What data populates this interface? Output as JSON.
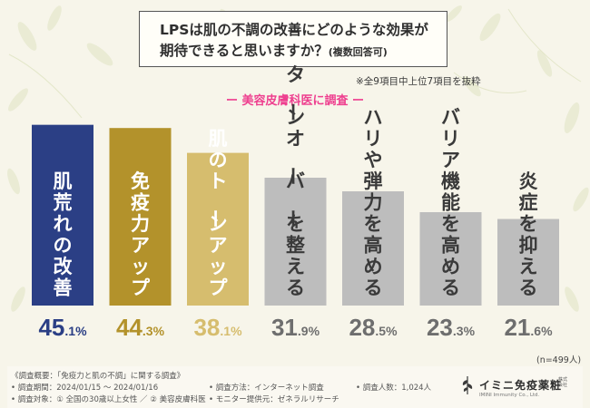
{
  "question": {
    "line1": "LPSは肌の不調の改善にどのような効果が",
    "line2": "期待できると思いますか？",
    "note": "(複数回答可)"
  },
  "extract_note": "※全9項目中上位7項目を抜粋",
  "subtitle": "ー 美容皮膚科医に調査 ー",
  "sample_note": "(n=499人)",
  "chart_data": {
    "type": "bar",
    "categories": [
      "肌荒れの改善",
      "免疫力アップ",
      "肌のトーンアップ",
      "ターンオーバーを整える",
      "ハリや弾力を高める",
      "バリア機能を高める",
      "炎症を抑える"
    ],
    "values": [
      45.1,
      44.3,
      38.1,
      31.9,
      28.5,
      23.3,
      21.6
    ],
    "value_labels": [
      {
        "int": "45",
        "dec": ".1%"
      },
      {
        "int": "44",
        "dec": ".3%"
      },
      {
        "int": "38",
        "dec": ".1%"
      },
      {
        "int": "31",
        "dec": ".9%"
      },
      {
        "int": "28",
        "dec": ".5%"
      },
      {
        "int": "23",
        "dec": ".3%"
      },
      {
        "int": "21",
        "dec": ".6%"
      }
    ],
    "unit": "%",
    "ylim": [
      0,
      50
    ],
    "bar_colors": [
      "#2b3f85",
      "#b3922b",
      "#d6bd6e",
      "#bdbdbd",
      "#bdbdbd",
      "#bdbdbd",
      "#bdbdbd"
    ],
    "label_colors": [
      "#ffffff",
      "#ffffff",
      "#ffffff",
      "#3a3a3a",
      "#3a3a3a",
      "#3a3a3a",
      "#3a3a3a"
    ],
    "value_colors": [
      "#2b3f85",
      "#b3922b",
      "#d6bd6e",
      "#6e6e6e",
      "#6e6e6e",
      "#6e6e6e",
      "#6e6e6e"
    ],
    "grid": false,
    "legend": "none"
  },
  "footer": {
    "summary": "《調査概要：「免疫力と肌の不調」に関する調査》",
    "period": "• 調査期間：2024/01/15 ～ 2024/01/16",
    "target": "• 調査対象：① 全国の30歳以上女性 ／ ② 美容皮膚科医",
    "method": "• 調査方法：インターネット調査",
    "provider": "• モニター提供元：ゼネラルリサーチ",
    "count": "• 調査人数：1,024人"
  },
  "brand": {
    "name": "イミニ免疫薬粧",
    "corp": "株式会社",
    "subtitle": "IMINI Immunity Co., Ltd."
  },
  "colors": {
    "accent_pink": "#ee3f8f",
    "navy": "#2b3f85",
    "gold": "#b3922b",
    "light_gold": "#d6bd6e",
    "gray": "#bdbdbd",
    "background": "#f7f5ea"
  }
}
